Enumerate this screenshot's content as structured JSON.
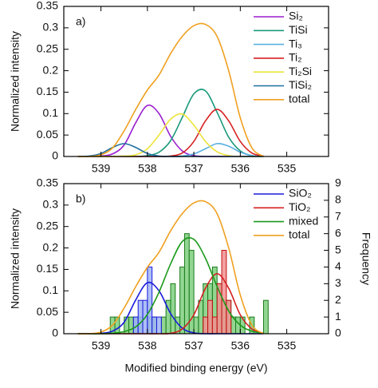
{
  "chart_data": [
    {
      "type": "line",
      "annotation": "a)",
      "ylabel": "Normalized intensity",
      "xlim": [
        539.8,
        534.1
      ],
      "xticks": [
        539,
        538,
        537,
        536,
        535
      ],
      "ylim": [
        0,
        0.35
      ],
      "yticks": [
        0,
        0.05,
        0.1,
        0.15,
        0.2,
        0.25,
        0.3,
        0.35
      ],
      "x": [
        539.5,
        539.25,
        539,
        538.75,
        538.5,
        538.25,
        538,
        537.75,
        537.5,
        537.25,
        537,
        536.75,
        536.5,
        536.25,
        536,
        535.75,
        535.5
      ],
      "series": [
        {
          "name": "Si₂",
          "color": "#9b1fd0",
          "values": [
            0,
            0,
            0.001,
            0.006,
            0.027,
            0.079,
            0.119,
            0.1,
            0.047,
            0.013,
            0.002,
            0,
            0,
            0,
            0,
            0,
            0
          ]
        },
        {
          "name": "TiSi",
          "color": "#1a9a7a",
          "values": [
            0,
            0,
            0,
            0,
            0,
            0,
            0.002,
            0.01,
            0.037,
            0.091,
            0.146,
            0.153,
            0.103,
            0.045,
            0.013,
            0.002,
            0
          ]
        },
        {
          "name": "Ti₃",
          "color": "#5ab0e0",
          "values": [
            0,
            0,
            0,
            0,
            0,
            0,
            0,
            0,
            0,
            0.001,
            0.006,
            0.018,
            0.03,
            0.024,
            0.01,
            0.002,
            0
          ]
        },
        {
          "name": "Ti₂",
          "color": "#d62020",
          "values": [
            0,
            0,
            0,
            0,
            0,
            0,
            0,
            0,
            0.001,
            0.008,
            0.035,
            0.083,
            0.11,
            0.083,
            0.035,
            0.008,
            0.001
          ]
        },
        {
          "name": "Ti₂Si",
          "color": "#ece33c",
          "values": [
            0,
            0,
            0,
            0,
            0.001,
            0.004,
            0.018,
            0.05,
            0.087,
            0.099,
            0.073,
            0.035,
            0.011,
            0.002,
            0,
            0,
            0
          ]
        },
        {
          "name": "TiSi₂",
          "color": "#1f6fa0",
          "values": [
            0,
            0.001,
            0.007,
            0.021,
            0.03,
            0.021,
            0.007,
            0.001,
            0,
            0,
            0,
            0,
            0,
            0,
            0,
            0,
            0
          ]
        },
        {
          "name": "total",
          "color": "#f0a020",
          "values": [
            0,
            0,
            0.004,
            0.02,
            0.06,
            0.11,
            0.155,
            0.19,
            0.24,
            0.28,
            0.305,
            0.308,
            0.28,
            0.2,
            0.09,
            0.02,
            0
          ]
        }
      ]
    },
    {
      "type": "combo",
      "annotation": "b)",
      "ylabel": "Normalized intensity",
      "y2label": "Frequency",
      "xlabel": "Modified binding energy (eV)",
      "xlim": [
        539.8,
        534.1
      ],
      "xticks": [
        539,
        538,
        537,
        536,
        535
      ],
      "ylim": [
        0,
        0.35
      ],
      "yticks": [
        0,
        0.05,
        0.1,
        0.15,
        0.2,
        0.25,
        0.3,
        0.35
      ],
      "y2lim": [
        0,
        9
      ],
      "y2ticks": [
        0,
        1,
        2,
        3,
        4,
        5,
        6,
        7,
        8,
        9
      ],
      "x": [
        539.5,
        539.25,
        539,
        538.75,
        538.5,
        538.25,
        538,
        537.75,
        537.5,
        537.25,
        537,
        536.75,
        536.5,
        536.25,
        536,
        535.75,
        535.5
      ],
      "series": [
        {
          "name": "SiO₂",
          "color": "#1a1adb",
          "values": [
            0,
            0,
            0.001,
            0.006,
            0.027,
            0.079,
            0.119,
            0.1,
            0.047,
            0.013,
            0.002,
            0,
            0,
            0,
            0,
            0,
            0
          ]
        },
        {
          "name": "TiO₂",
          "color": "#d62020",
          "values": [
            0,
            0,
            0,
            0,
            0,
            0,
            0,
            0,
            0.001,
            0.011,
            0.044,
            0.106,
            0.14,
            0.106,
            0.044,
            0.011,
            0.001
          ]
        },
        {
          "name": "mixed",
          "color": "#1a9a1a",
          "values": [
            0,
            0,
            0,
            0.001,
            0.005,
            0.016,
            0.045,
            0.097,
            0.163,
            0.215,
            0.22,
            0.176,
            0.11,
            0.053,
            0.02,
            0.006,
            0.001
          ]
        },
        {
          "name": "total",
          "color": "#f0a020",
          "values": [
            0,
            0,
            0.004,
            0.02,
            0.06,
            0.11,
            0.155,
            0.19,
            0.24,
            0.28,
            0.305,
            0.308,
            0.28,
            0.2,
            0.09,
            0.02,
            0
          ]
        }
      ],
      "bins": [
        538.8,
        538.7,
        538.6,
        538.5,
        538.4,
        538.3,
        538.2,
        538.1,
        538.0,
        537.9,
        537.8,
        537.7,
        537.6,
        537.5,
        537.4,
        537.3,
        537.2,
        537.1,
        537.0,
        536.9,
        536.8,
        536.7,
        536.6,
        536.5,
        536.4,
        536.3,
        536.2,
        536.1,
        536.0,
        535.9,
        535.8,
        535.7,
        535.6,
        535.5,
        535.4
      ],
      "histograms": [
        {
          "color": "#7fcf7f",
          "edge": "#1a7a1a",
          "axis": "y2",
          "counts": [
            1,
            1,
            0,
            1,
            1,
            1,
            1,
            0,
            1,
            1,
            0,
            1,
            2,
            3,
            1,
            4,
            6,
            5,
            1,
            2,
            3,
            3,
            4,
            3,
            2,
            2,
            1,
            1,
            1,
            0,
            1,
            0,
            0,
            2
          ]
        },
        {
          "color": "#9fb4f4",
          "edge": "#1a1adb",
          "axis": "y2",
          "counts": [
            0,
            0,
            0,
            0,
            0,
            1,
            2,
            2,
            4,
            1,
            1,
            0,
            0,
            0,
            0,
            0,
            0,
            0,
            0,
            0,
            0,
            0,
            0,
            0,
            0,
            0,
            0,
            0,
            0,
            0,
            0,
            0,
            0,
            0
          ]
        },
        {
          "color": "#f29090",
          "edge": "#c01010",
          "axis": "y2",
          "counts": [
            0,
            0,
            0,
            0,
            0,
            0,
            0,
            0,
            0,
            0,
            0,
            0,
            0,
            0,
            0,
            0,
            0,
            0,
            0,
            0,
            1,
            2,
            1,
            3,
            5,
            2,
            0,
            0,
            0,
            0,
            0,
            0,
            0,
            0
          ]
        }
      ]
    }
  ]
}
